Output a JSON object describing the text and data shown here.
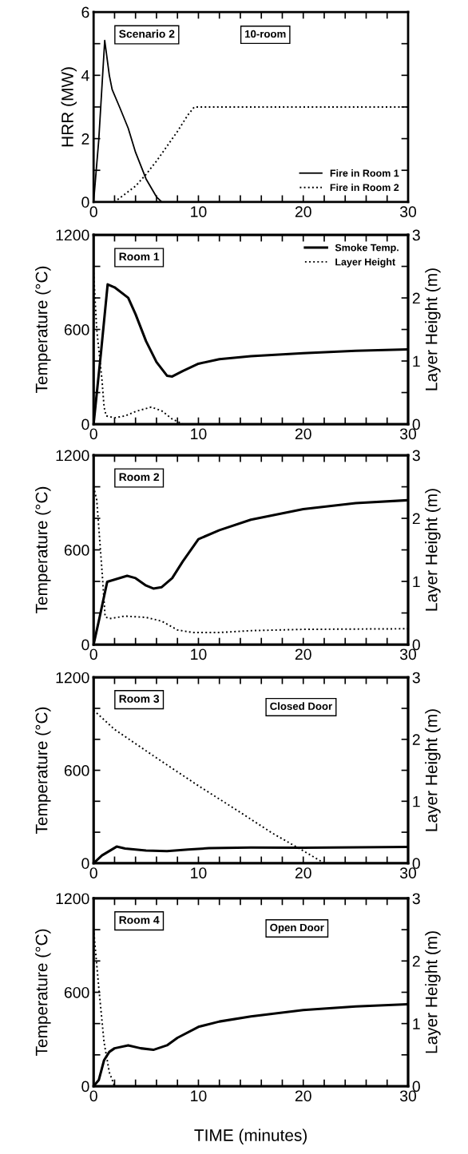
{
  "chart_data": [
    {
      "type": "line",
      "annotations": [
        "Scenario 2",
        "10-room"
      ],
      "ylabel": "HRR (MW)",
      "xlim": [
        0,
        30
      ],
      "xticks": [
        0,
        {
          "value": 2,
          "label": null
        },
        {
          "value": 4,
          "label": null
        },
        {
          "value": 6,
          "label": null
        },
        {
          "value": 8,
          "label": null
        },
        10,
        {
          "value": 12,
          "label": null
        },
        {
          "value": 14,
          "label": null
        },
        {
          "value": 16,
          "label": null
        },
        {
          "value": 18,
          "label": null
        },
        20,
        {
          "value": 22,
          "label": null
        },
        {
          "value": 24,
          "label": null
        },
        {
          "value": 26,
          "label": null
        },
        {
          "value": 28,
          "label": null
        },
        30
      ],
      "ylim": [
        0,
        6
      ],
      "yticks": [
        0,
        {
          "value": 1,
          "label": null
        },
        2,
        {
          "value": 3,
          "label": null
        },
        4,
        {
          "value": 5,
          "label": null
        },
        6
      ],
      "legend": "lower right",
      "grid": false,
      "series": [
        {
          "name": "Fire in Room 1",
          "color": "#000000",
          "line_style": "solid",
          "x": [
            0,
            0.49,
            1.06,
            1.5,
            1.77,
            2.5,
            3.3,
            4,
            5,
            6,
            6.5,
            30
          ],
          "values": [
            0,
            1.95,
            5.1,
            4.0,
            3.55,
            2.98,
            2.33,
            1.57,
            0.73,
            0.16,
            0,
            0
          ]
        },
        {
          "name": "Fire in Room 2",
          "color": "#000000",
          "line_style": "dotted",
          "x": [
            0,
            2,
            3,
            4,
            5,
            6,
            7,
            8,
            9,
            9.6,
            30
          ],
          "values": [
            0,
            0,
            0.25,
            0.5,
            0.87,
            1.29,
            1.76,
            2.23,
            2.75,
            3.0,
            3.0
          ]
        }
      ]
    },
    {
      "type": "line",
      "annotations": [
        "Room 1"
      ],
      "ylabel": "Temperature (°C)",
      "y2label": "Layer Height (m)",
      "xlim": [
        0,
        30
      ],
      "xticks": [
        0,
        {
          "value": 2,
          "label": null
        },
        {
          "value": 4,
          "label": null
        },
        {
          "value": 6,
          "label": null
        },
        {
          "value": 8,
          "label": null
        },
        10,
        {
          "value": 12,
          "label": null
        },
        {
          "value": 14,
          "label": null
        },
        {
          "value": 16,
          "label": null
        },
        {
          "value": 18,
          "label": null
        },
        20,
        {
          "value": 22,
          "label": null
        },
        {
          "value": 24,
          "label": null
        },
        {
          "value": 26,
          "label": null
        },
        {
          "value": 28,
          "label": null
        },
        30
      ],
      "ylim": [
        0,
        1200
      ],
      "yticks": [
        0,
        {
          "value": 200,
          "label": null
        },
        {
          "value": 400,
          "label": null
        },
        600,
        {
          "value": 800,
          "label": null
        },
        {
          "value": 1000,
          "label": null
        },
        1200
      ],
      "y2lim": [
        0,
        3
      ],
      "y2ticks": [
        0,
        {
          "value": 0.5,
          "label": null
        },
        1,
        {
          "value": 1.5,
          "label": null
        },
        2,
        {
          "value": 2.5,
          "label": null
        },
        3
      ],
      "legend": "top right",
      "grid": false,
      "series": [
        {
          "name": "Smoke Temp.",
          "color": "#000000",
          "line_style": "solid",
          "x": [
            0,
            0.7,
            1.34,
            2,
            3.3,
            4,
            5,
            6,
            7,
            7.5,
            8.5,
            10,
            12,
            15,
            20,
            25,
            30
          ],
          "values": [
            0,
            450,
            886,
            867,
            801,
            697,
            526,
            393,
            307,
            302,
            336,
            383,
            412,
            431,
            450,
            465,
            474
          ]
        },
        {
          "name": "Layer Height",
          "color": "#000000",
          "line_style": "dotted",
          "axis": "y2",
          "x": [
            0,
            0.3,
            0.8,
            1,
            1.2,
            2,
            3,
            4,
            5.5,
            6.5,
            7.5,
            8.5,
            30
          ],
          "values": [
            2.4,
            1.5,
            0.7,
            0.27,
            0.13,
            0.1,
            0.13,
            0.2,
            0.27,
            0.21,
            0.08,
            0,
            0
          ]
        }
      ]
    },
    {
      "type": "line",
      "annotations": [
        "Room 2"
      ],
      "ylabel": "Temperature (°C)",
      "y2label": "Layer Height (m)",
      "xlim": [
        0,
        30
      ],
      "xticks": [
        0,
        {
          "value": 2,
          "label": null
        },
        {
          "value": 4,
          "label": null
        },
        {
          "value": 6,
          "label": null
        },
        {
          "value": 8,
          "label": null
        },
        10,
        {
          "value": 12,
          "label": null
        },
        {
          "value": 14,
          "label": null
        },
        {
          "value": 16,
          "label": null
        },
        {
          "value": 18,
          "label": null
        },
        20,
        {
          "value": 22,
          "label": null
        },
        {
          "value": 24,
          "label": null
        },
        {
          "value": 26,
          "label": null
        },
        {
          "value": 28,
          "label": null
        },
        30
      ],
      "ylim": [
        0,
        1200
      ],
      "yticks": [
        0,
        {
          "value": 200,
          "label": null
        },
        {
          "value": 400,
          "label": null
        },
        600,
        {
          "value": 800,
          "label": null
        },
        {
          "value": 1000,
          "label": null
        },
        1200
      ],
      "y2lim": [
        0,
        3
      ],
      "y2ticks": [
        0,
        {
          "value": 0.5,
          "label": null
        },
        1,
        {
          "value": 1.5,
          "label": null
        },
        2,
        {
          "value": 2.5,
          "label": null
        },
        3
      ],
      "grid": false,
      "series": [
        {
          "color": "#000000",
          "line_style": "solid",
          "x": [
            0,
            0.5,
            1.3,
            2,
            3.2,
            4,
            5,
            5.7,
            6.5,
            7.5,
            8.5,
            10,
            12,
            15,
            20,
            25,
            30
          ],
          "values": [
            0,
            150,
            398,
            412,
            436,
            421,
            374,
            355,
            364,
            421,
            526,
            668,
            725,
            791,
            858,
            896,
            915
          ]
        },
        {
          "color": "#000000",
          "line_style": "dotted",
          "axis": "y2",
          "x": [
            0,
            0.3,
            0.8,
            1.1,
            1.5,
            3,
            5,
            6.5,
            8,
            9.5,
            12,
            15,
            20,
            30
          ],
          "values": [
            2.5,
            2.29,
            1.17,
            0.44,
            0.41,
            0.45,
            0.43,
            0.37,
            0.23,
            0.19,
            0.19,
            0.22,
            0.24,
            0.25
          ]
        }
      ]
    },
    {
      "type": "line",
      "annotations": [
        "Room 3",
        "Closed Door"
      ],
      "ylabel": "Temperature (°C)",
      "y2label": "Layer Height (m)",
      "xlim": [
        0,
        30
      ],
      "xticks": [
        0,
        {
          "value": 2,
          "label": null
        },
        {
          "value": 4,
          "label": null
        },
        {
          "value": 6,
          "label": null
        },
        {
          "value": 8,
          "label": null
        },
        10,
        {
          "value": 12,
          "label": null
        },
        {
          "value": 14,
          "label": null
        },
        {
          "value": 16,
          "label": null
        },
        {
          "value": 18,
          "label": null
        },
        20,
        {
          "value": 22,
          "label": null
        },
        {
          "value": 24,
          "label": null
        },
        {
          "value": 26,
          "label": null
        },
        {
          "value": 28,
          "label": null
        },
        30
      ],
      "ylim": [
        0,
        1200
      ],
      "yticks": [
        0,
        {
          "value": 200,
          "label": null
        },
        {
          "value": 400,
          "label": null
        },
        600,
        {
          "value": 800,
          "label": null
        },
        {
          "value": 1000,
          "label": null
        },
        1200
      ],
      "y2lim": [
        0,
        3
      ],
      "y2ticks": [
        0,
        {
          "value": 0.5,
          "label": null
        },
        1,
        {
          "value": 1.5,
          "label": null
        },
        2,
        {
          "value": 2.5,
          "label": null
        },
        3
      ],
      "grid": false,
      "series": [
        {
          "color": "#000000",
          "line_style": "solid",
          "x": [
            0,
            0.8,
            2.2,
            3,
            5,
            7,
            9,
            11,
            15,
            20,
            30
          ],
          "values": [
            0,
            50,
            107,
            95,
            82,
            78,
            88,
            97,
            101,
            100,
            105
          ]
        },
        {
          "color": "#000000",
          "line_style": "dotted",
          "axis": "y2",
          "x": [
            0,
            2,
            6,
            10,
            14,
            17,
            20,
            22,
            30
          ],
          "values": [
            2.47,
            2.16,
            1.7,
            1.25,
            0.82,
            0.49,
            0.2,
            0,
            0
          ]
        }
      ]
    },
    {
      "type": "line",
      "annotations": [
        "Room 4",
        "Open Door"
      ],
      "xlabel": "TIME (minutes)",
      "ylabel": "Temperature (°C)",
      "y2label": "Layer Height (m)",
      "xlim": [
        0,
        30
      ],
      "xticks": [
        0,
        {
          "value": 2,
          "label": null
        },
        {
          "value": 4,
          "label": null
        },
        {
          "value": 6,
          "label": null
        },
        {
          "value": 8,
          "label": null
        },
        10,
        {
          "value": 12,
          "label": null
        },
        {
          "value": 14,
          "label": null
        },
        {
          "value": 16,
          "label": null
        },
        {
          "value": 18,
          "label": null
        },
        20,
        {
          "value": 22,
          "label": null
        },
        {
          "value": 24,
          "label": null
        },
        {
          "value": 26,
          "label": null
        },
        {
          "value": 28,
          "label": null
        },
        30
      ],
      "ylim": [
        0,
        1200
      ],
      "yticks": [
        0,
        {
          "value": 200,
          "label": null
        },
        {
          "value": 400,
          "label": null
        },
        600,
        {
          "value": 800,
          "label": null
        },
        {
          "value": 1000,
          "label": null
        },
        1200
      ],
      "y2lim": [
        0,
        3
      ],
      "y2ticks": [
        0,
        {
          "value": 0.5,
          "label": null
        },
        1,
        {
          "value": 1.5,
          "label": null
        },
        2,
        {
          "value": 2.5,
          "label": null
        },
        3
      ],
      "grid": false,
      "series": [
        {
          "color": "#000000",
          "line_style": "solid",
          "x": [
            0,
            0.5,
            1,
            1.5,
            2,
            3.3,
            4.5,
            5.7,
            7,
            8,
            10,
            12,
            15,
            20,
            25,
            30
          ],
          "values": [
            0,
            40,
            166,
            219,
            242,
            261,
            242,
            232,
            261,
            309,
            379,
            413,
            446,
            486,
            509,
            524
          ]
        },
        {
          "color": "#000000",
          "line_style": "dotted",
          "axis": "y2",
          "x": [
            0,
            0.5,
            1,
            1.5,
            2,
            30
          ],
          "values": [
            2.51,
            1.56,
            0.7,
            0.22,
            0,
            0
          ]
        }
      ]
    }
  ]
}
